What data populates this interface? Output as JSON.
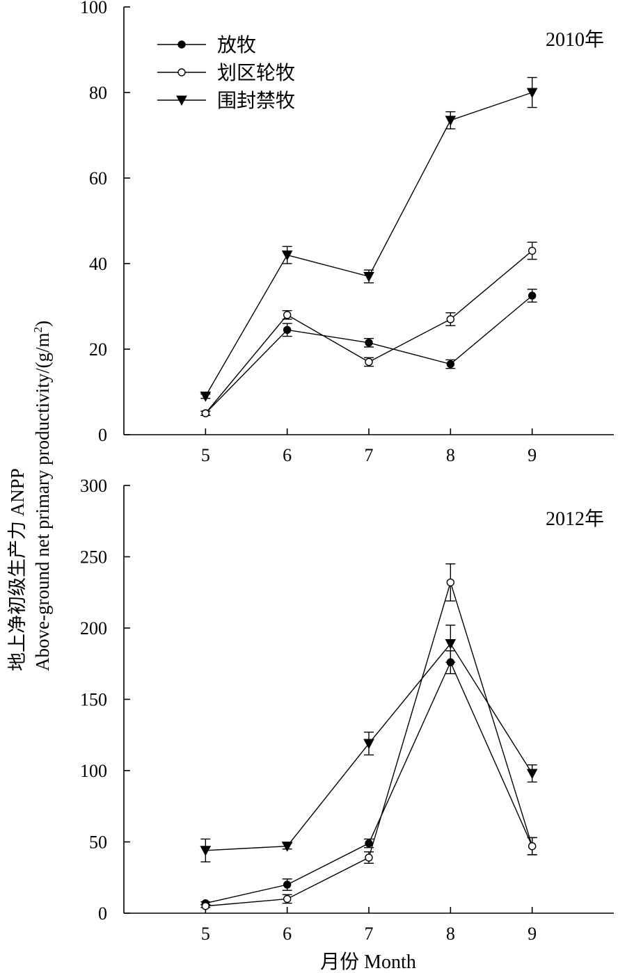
{
  "figure": {
    "ylabel_cn": "地上净初级生产力 ANPP",
    "ylabel_en": "Above-ground net primary productivity/(g/m",
    "ylabel_en_sup": "2",
    "ylabel_en_end": ")",
    "xlabel": "月份 Month"
  },
  "legend": [
    {
      "name": "放牧",
      "marker": "filled-circle"
    },
    {
      "name": "划区轮牧",
      "marker": "open-circle"
    },
    {
      "name": "围封禁牧",
      "marker": "filled-triangle-down"
    }
  ],
  "chart_data": [
    {
      "type": "line",
      "annotation": "2010年",
      "x": [
        5,
        6,
        7,
        8,
        9
      ],
      "xlim": [
        4,
        10
      ],
      "ylim": [
        0,
        100
      ],
      "yticks": [
        0,
        20,
        40,
        60,
        80,
        100
      ],
      "xticks": [
        5,
        6,
        7,
        8,
        9
      ],
      "series": [
        {
          "name": "放牧",
          "marker": "filled-circle",
          "values": [
            5,
            24.5,
            21.5,
            16.5,
            32.5
          ],
          "errors": [
            0.5,
            1.5,
            1.0,
            1.0,
            1.5
          ]
        },
        {
          "name": "划区轮牧",
          "marker": "open-circle",
          "values": [
            5,
            28,
            17,
            27,
            43
          ],
          "errors": [
            0.5,
            1.0,
            1.0,
            1.5,
            2.0
          ]
        },
        {
          "name": "围封禁牧",
          "marker": "filled-triangle-down",
          "values": [
            9,
            42,
            37,
            73.5,
            80
          ],
          "errors": [
            0.5,
            2.0,
            1.5,
            2.0,
            3.5
          ]
        }
      ]
    },
    {
      "type": "line",
      "annotation": "2012年",
      "x": [
        5,
        6,
        7,
        8,
        9
      ],
      "xlim": [
        4,
        10
      ],
      "ylim": [
        0,
        300
      ],
      "yticks": [
        0,
        50,
        100,
        150,
        200,
        250,
        300
      ],
      "xticks": [
        5,
        6,
        7,
        8,
        9
      ],
      "series": [
        {
          "name": "放牧",
          "marker": "filled-circle",
          "values": [
            7,
            20,
            49,
            176,
            47
          ],
          "errors": [
            1.0,
            4.0,
            3.0,
            8.0,
            6.0
          ]
        },
        {
          "name": "划区轮牧",
          "marker": "open-circle",
          "values": [
            5,
            10,
            39,
            232,
            47
          ],
          "errors": [
            1.0,
            3.0,
            4.0,
            13.0,
            6.0
          ]
        },
        {
          "name": "围封禁牧",
          "marker": "filled-triangle-down",
          "values": [
            44,
            47,
            119,
            189,
            98
          ],
          "errors": [
            8.0,
            2.0,
            8.0,
            13.0,
            6.0
          ]
        }
      ]
    }
  ]
}
